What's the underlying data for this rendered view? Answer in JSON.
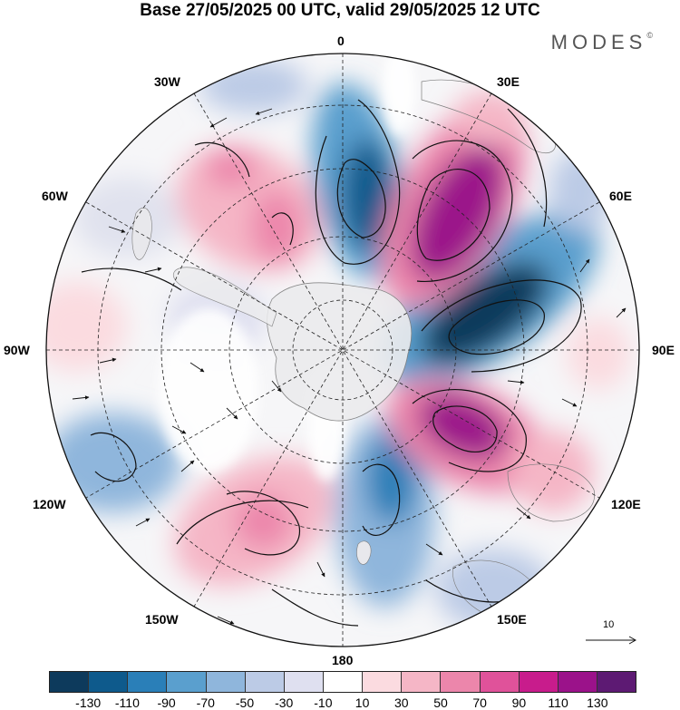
{
  "title": "Base 27/05/2025 00 UTC, valid 29/05/2025 12 UTC",
  "brand": "MODES",
  "brand_mark": "©",
  "longitude_labels": {
    "top": "0",
    "top_right": "30E",
    "upper_right": "60E",
    "right": "90E",
    "lower_right": "120E",
    "bottom_right": "150E",
    "bottom": "180",
    "bottom_left": "150W",
    "lower_left": "120W",
    "left": "90W",
    "upper_left": "60W",
    "top_left": "30W"
  },
  "reference_vector_label": "10",
  "colorbar": {
    "colors": [
      "#0d3a5c",
      "#0e5a8c",
      "#2a7fb8",
      "#5a9fce",
      "#8fb6dc",
      "#bccbe6",
      "#dfe0f0",
      "#ffffff",
      "#fbdbe0",
      "#f5b6c6",
      "#ec86ab",
      "#e0529a",
      "#c81c8c",
      "#9b128a",
      "#5d1a73"
    ],
    "tick_labels": [
      "-130",
      "-110",
      "-90",
      "-70",
      "-50",
      "-30",
      "-10",
      "10",
      "30",
      "50",
      "70",
      "90",
      "110",
      "130"
    ]
  }
}
